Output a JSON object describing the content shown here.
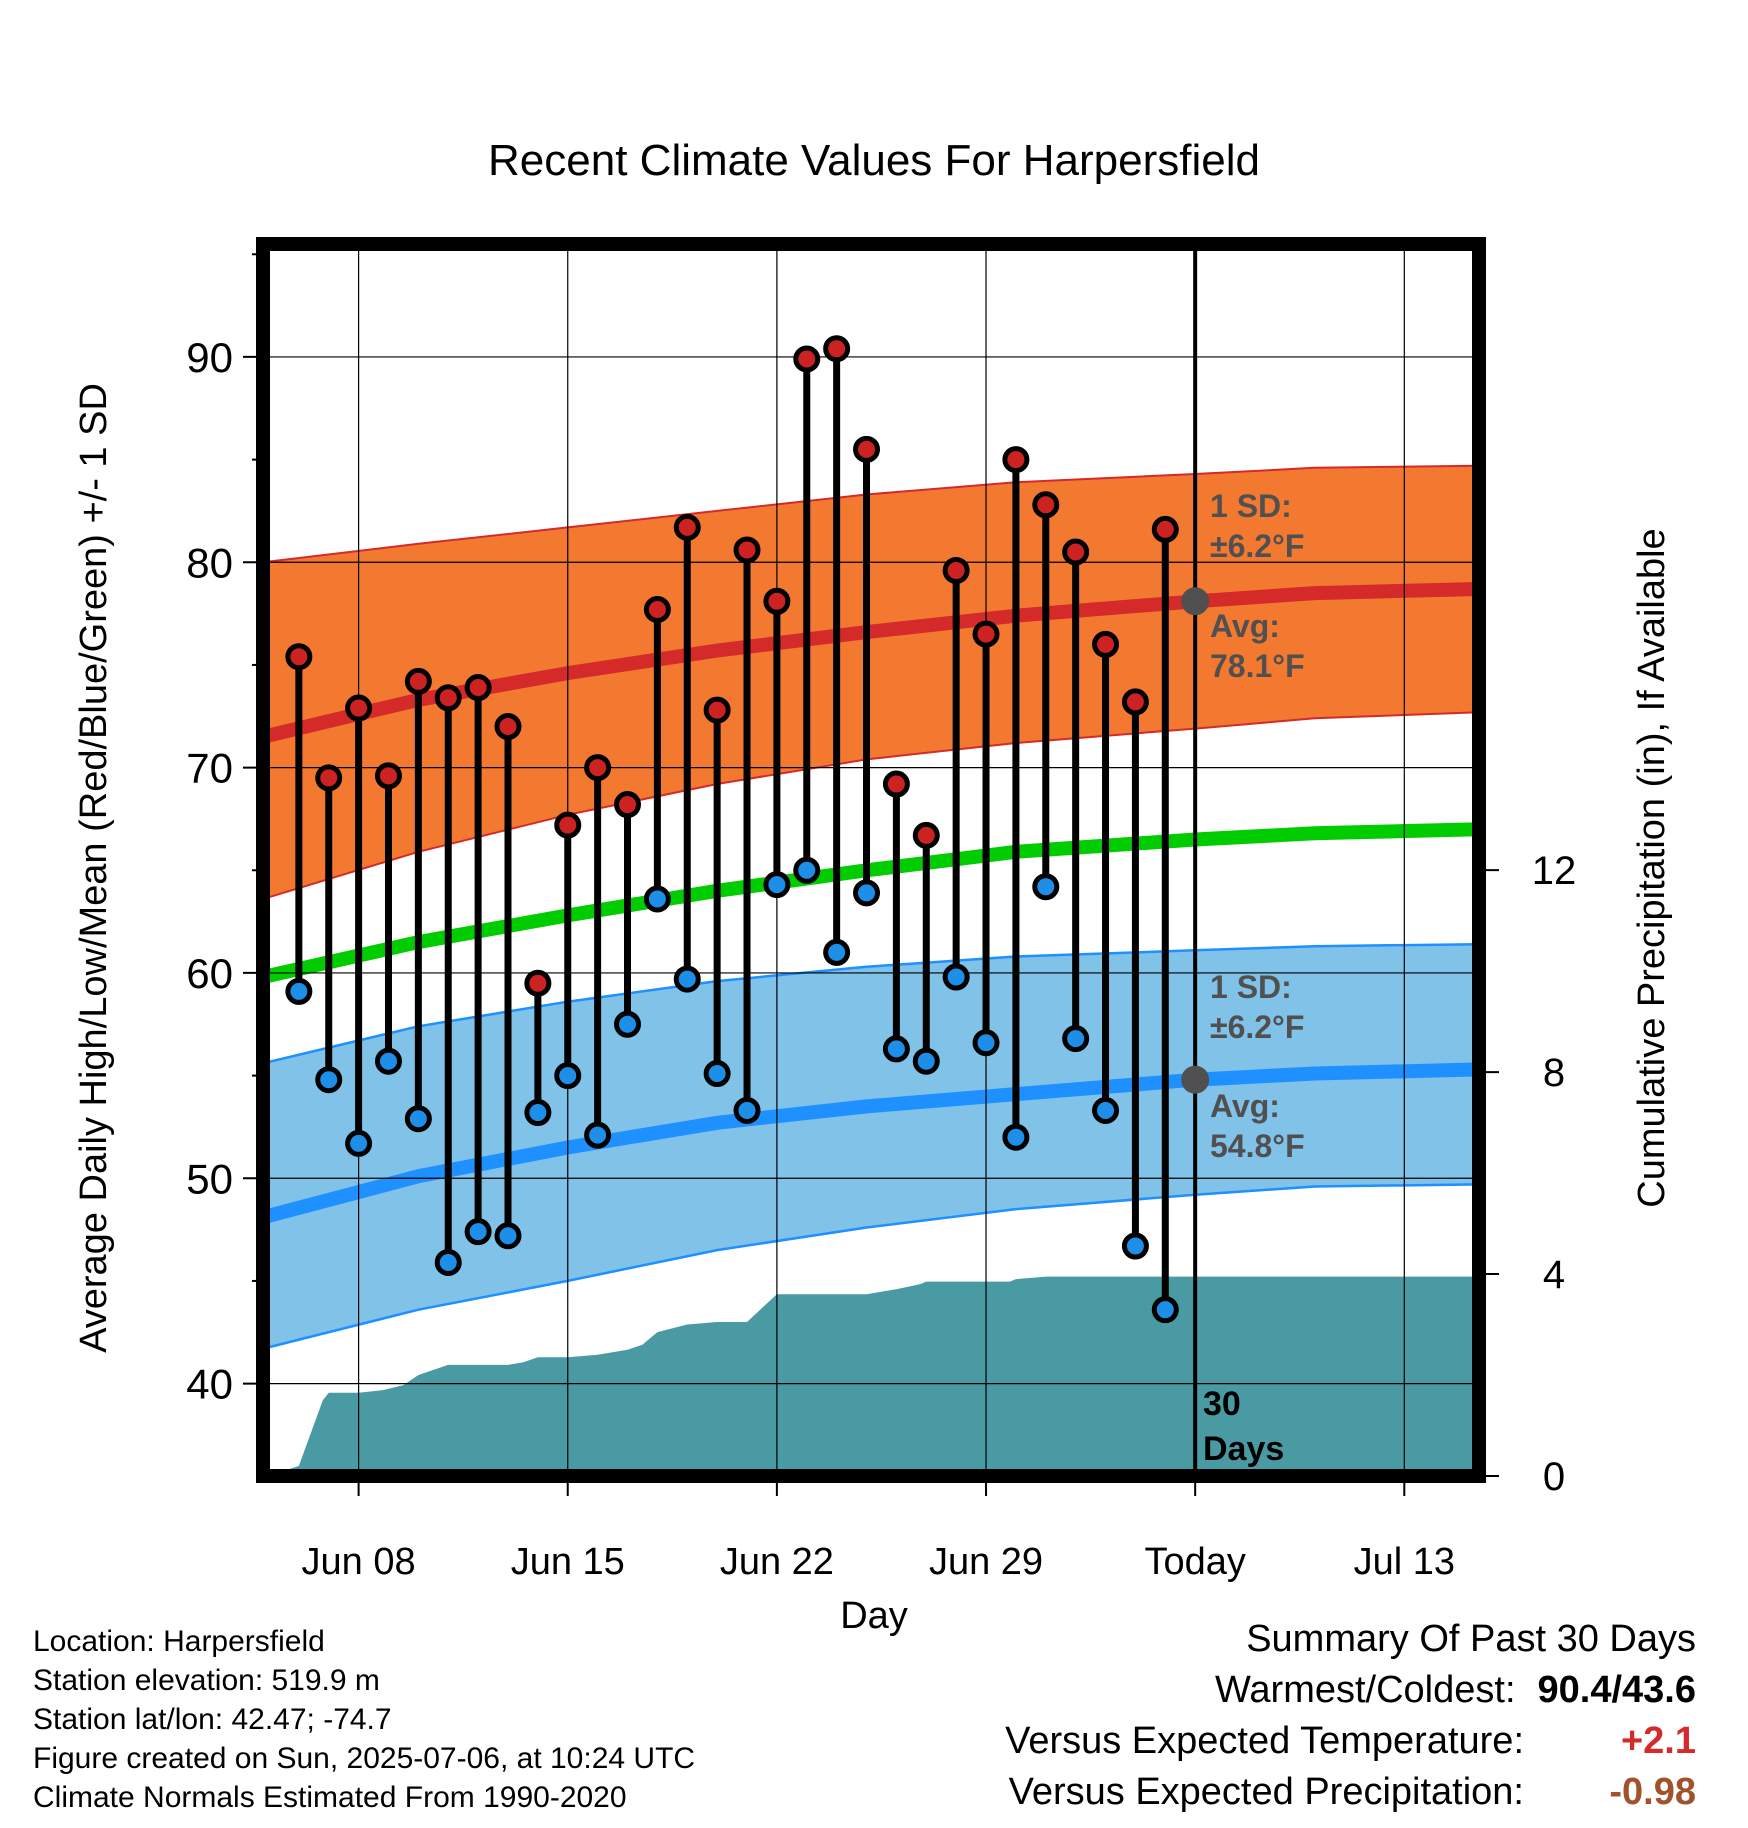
{
  "chart_data": {
    "type": "line",
    "title": "Recent Climate Values For Harpersfield",
    "xlabel": "Day",
    "ylabel_left": "Average Daily High/Low/Mean (Red/Blue/Green) +/- 1 SD",
    "ylabel_right": "Cumulative Precipitation (in), If Available",
    "x_ticks": [
      {
        "day": 8,
        "label": "Jun 08"
      },
      {
        "day": 15,
        "label": "Jun 15"
      },
      {
        "day": 22,
        "label": "Jun 22"
      },
      {
        "day": 29,
        "label": "Jun 29"
      },
      {
        "day": 36,
        "label": "Today"
      },
      {
        "day": 43,
        "label": "Jul 13"
      }
    ],
    "x_range_day_of_june": [
      4.8,
      45.5
    ],
    "ylim_left": [
      35.5,
      95.5
    ],
    "yticks_left": [
      40,
      50,
      60,
      70,
      80,
      90
    ],
    "ylim_right": [
      0,
      24.4
    ],
    "yticks_right": [
      0,
      4,
      8,
      12
    ],
    "grid": true,
    "today_day": 36,
    "days_label": [
      "30",
      "Days"
    ],
    "normals": {
      "days": [
        4.8,
        10,
        15,
        20,
        25,
        30,
        36,
        40,
        45.5
      ],
      "high_mean": [
        71.5,
        73.3,
        74.6,
        75.7,
        76.6,
        77.4,
        78.1,
        78.5,
        78.7
      ],
      "high_upper": [
        80.0,
        80.9,
        81.7,
        82.5,
        83.3,
        83.9,
        84.3,
        84.6,
        84.7
      ],
      "high_lower": [
        63.6,
        65.9,
        67.7,
        69.2,
        70.4,
        71.2,
        71.9,
        72.4,
        72.7
      ],
      "mean": [
        59.8,
        61.5,
        62.8,
        64.0,
        65.0,
        65.9,
        66.5,
        66.8,
        67.0
      ],
      "low_mean": [
        48.1,
        50.1,
        51.5,
        52.7,
        53.5,
        54.1,
        54.8,
        55.1,
        55.3
      ],
      "low_upper": [
        55.6,
        57.4,
        58.6,
        59.6,
        60.3,
        60.8,
        61.1,
        61.3,
        61.4
      ],
      "low_lower": [
        41.7,
        43.6,
        45.0,
        46.5,
        47.6,
        48.5,
        49.2,
        49.6,
        49.7
      ]
    },
    "series": [
      {
        "name": "High",
        "days": [
          6,
          7,
          8,
          9,
          10,
          11,
          12,
          13,
          14,
          15,
          16,
          17,
          18,
          19,
          20,
          21,
          22,
          23,
          24,
          25,
          26,
          27,
          28,
          29,
          30,
          31,
          32,
          33,
          34,
          35
        ],
        "values": [
          75.4,
          69.5,
          72.9,
          69.6,
          74.2,
          73.4,
          73.9,
          72.0,
          59.5,
          67.2,
          70.0,
          68.2,
          77.7,
          81.7,
          72.8,
          80.6,
          78.1,
          89.9,
          90.4,
          85.5,
          69.2,
          66.7,
          79.6,
          76.5,
          85.0,
          82.8,
          80.5,
          76.0,
          73.2,
          81.6
        ]
      },
      {
        "name": "Low",
        "days": [
          6,
          7,
          8,
          9,
          10,
          11,
          12,
          13,
          14,
          15,
          16,
          17,
          18,
          19,
          20,
          21,
          22,
          23,
          24,
          25,
          26,
          27,
          28,
          29,
          30,
          31,
          32,
          33,
          34,
          35
        ],
        "values": [
          59.1,
          54.8,
          51.7,
          55.7,
          52.9,
          45.9,
          47.4,
          47.2,
          53.2,
          55.0,
          52.1,
          57.5,
          63.6,
          59.7,
          55.1,
          53.3,
          64.3,
          65.0,
          61.0,
          63.9,
          56.3,
          55.7,
          59.8,
          56.6,
          52.0,
          64.2,
          56.8,
          53.3,
          46.7,
          43.6
        ]
      },
      {
        "name": "Cumulative Precipitation",
        "days": [
          5,
          5.5,
          6,
          6.8,
          7,
          8,
          8.8,
          9.5,
          10,
          11,
          12,
          13,
          13.5,
          14,
          15,
          16,
          17,
          17.5,
          18,
          19,
          20,
          21,
          22,
          23,
          24,
          25,
          26,
          26.8,
          27,
          29,
          29.8,
          30,
          31,
          32,
          36,
          45.5
        ],
        "values": [
          0.0,
          0.1,
          0.2,
          1.5,
          1.65,
          1.65,
          1.7,
          1.8,
          2.0,
          2.2,
          2.2,
          2.2,
          2.25,
          2.35,
          2.35,
          2.4,
          2.5,
          2.6,
          2.85,
          3.0,
          3.05,
          3.05,
          3.6,
          3.6,
          3.6,
          3.6,
          3.7,
          3.8,
          3.85,
          3.85,
          3.85,
          3.9,
          3.95,
          3.95,
          3.95,
          3.95
        ]
      }
    ],
    "annotations": {
      "high_sd_label": "1 SD:",
      "high_sd_value": "±6.2°F",
      "high_avg_label": "Avg:",
      "high_avg_value": "78.1°F",
      "low_sd_label": "1 SD:",
      "low_sd_value": "±6.2°F",
      "low_avg_label": "Avg:",
      "low_avg_value": "54.8°F"
    },
    "colors": {
      "high_band": "#f47930",
      "high_mean_line": "#d42a2a",
      "mean_line": "#00cc00",
      "low_band": "#80c2e8",
      "low_mean_line": "#1e90ff",
      "precip": "#4a9aa4",
      "high_marker": "#cc2222",
      "low_marker": "#1e8fe8"
    }
  },
  "footer": {
    "location": "Location: Harpersfield",
    "elevation": "Station elevation: 519.9 m",
    "latlon": "Station lat/lon: 42.47; -74.7",
    "created": "Figure created on Sun, 2025-07-06, at 10:24 UTC",
    "normals": "Climate Normals Estimated From 1990-2020"
  },
  "summary": {
    "title": "Summary Of Past 30 Days",
    "warm_cold_label": "Warmest/Coldest:",
    "warm_cold_value": "90.4/43.6",
    "temp_label": "Versus Expected Temperature:",
    "temp_value": "+2.1",
    "temp_color": "#d42a2a",
    "precip_label": "Versus Expected Precipitation:",
    "precip_value": "-0.98",
    "precip_color": "#a0522d"
  }
}
